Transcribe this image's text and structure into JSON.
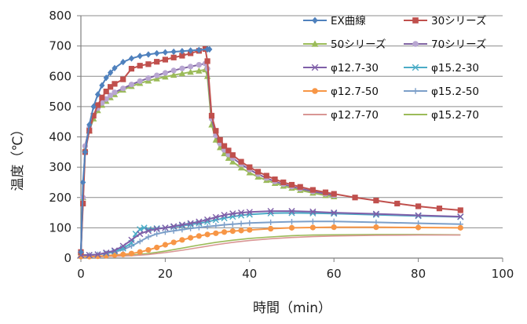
{
  "chart_data": {
    "type": "line",
    "xlabel": "時間（min）",
    "ylabel": "温度（℃）",
    "xlim": [
      0,
      100
    ],
    "ylim": [
      0,
      800
    ],
    "xticks": [
      "0",
      "20",
      "40",
      "60",
      "80",
      "100"
    ],
    "yticks": [
      "0",
      "100",
      "200",
      "300",
      "400",
      "500",
      "600",
      "700",
      "800"
    ],
    "grid": "horizontal",
    "legend": "right",
    "series": [
      {
        "name": "EX曲線",
        "color": "#4f81bd",
        "marker": "diamond",
        "x": [
          0,
          0.5,
          1,
          2,
          3,
          4,
          5,
          6,
          7,
          8,
          10,
          12,
          14,
          16,
          18,
          20,
          22,
          24,
          26,
          28,
          30,
          30.5
        ],
        "y": [
          20,
          250,
          350,
          440,
          500,
          540,
          570,
          595,
          612,
          627,
          647,
          659,
          667,
          672,
          676,
          679,
          681,
          683,
          685,
          687,
          689,
          689
        ]
      },
      {
        "name": "30シリーズ",
        "color": "#c0504d",
        "marker": "square",
        "x": [
          0,
          0.5,
          1,
          2,
          3,
          4,
          5,
          6,
          7,
          8,
          10,
          12,
          14,
          16,
          18,
          20,
          22,
          24,
          26,
          28,
          29.5,
          30,
          31,
          32,
          33,
          34,
          35,
          36,
          38,
          40,
          42,
          44,
          46,
          48,
          50,
          52,
          55,
          58,
          60,
          65,
          70,
          75,
          80,
          85,
          90
        ],
        "y": [
          20,
          180,
          350,
          420,
          470,
          505,
          530,
          550,
          565,
          575,
          590,
          625,
          635,
          640,
          648,
          655,
          662,
          668,
          676,
          684,
          690,
          650,
          470,
          420,
          390,
          370,
          355,
          340,
          318,
          300,
          285,
          272,
          260,
          250,
          242,
          235,
          225,
          217,
          212,
          200,
          190,
          180,
          171,
          164,
          158
        ]
      },
      {
        "name": "50シリーズ",
        "color": "#9bbb59",
        "marker": "triangle",
        "x": [
          0,
          0.5,
          1,
          2,
          3,
          4,
          5,
          6,
          7,
          8,
          10,
          12,
          14,
          16,
          18,
          20,
          22,
          24,
          26,
          28,
          29.5,
          30,
          31,
          32,
          33,
          34,
          35,
          36,
          38,
          40,
          42,
          44,
          46,
          48,
          50,
          52,
          55,
          58,
          60
        ],
        "y": [
          20,
          200,
          360,
          420,
          460,
          487,
          505,
          518,
          530,
          540,
          555,
          567,
          577,
          585,
          592,
          598,
          604,
          609,
          614,
          618,
          622,
          600,
          440,
          390,
          365,
          345,
          330,
          318,
          298,
          282,
          268,
          257,
          247,
          238,
          231,
          224,
          215,
          207,
          203
        ]
      },
      {
        "name": "70シリーズ",
        "color": "#8064a2",
        "marker": "circle",
        "light": "#b8a6d1",
        "x": [
          0,
          0.5,
          1,
          2,
          3,
          4,
          5,
          6,
          7,
          8,
          10,
          12,
          14,
          16,
          18,
          20,
          22,
          24,
          26,
          28,
          29.5,
          30,
          31,
          32,
          33,
          34,
          35,
          36,
          38,
          40,
          42,
          44,
          46,
          48,
          50,
          52,
          55,
          58,
          60
        ],
        "y": [
          20,
          200,
          370,
          430,
          470,
          495,
          512,
          525,
          537,
          547,
          560,
          573,
          584,
          594,
          603,
          611,
          619,
          626,
          632,
          638,
          642,
          625,
          460,
          405,
          378,
          357,
          342,
          330,
          310,
          292,
          277,
          264,
          253,
          244,
          236,
          229,
          220,
          212,
          207
        ]
      },
      {
        "name": "φ12.7-30",
        "color": "#7f5fa8",
        "marker": "x",
        "x": [
          0,
          2,
          4,
          6,
          8,
          10,
          12,
          14,
          16,
          18,
          20,
          22,
          24,
          26,
          28,
          30,
          32,
          34,
          36,
          38,
          40,
          45,
          50,
          55,
          60,
          70,
          80,
          90
        ],
        "y": [
          10,
          10,
          12,
          18,
          25,
          40,
          60,
          80,
          90,
          96,
          100,
          105,
          110,
          115,
          120,
          127,
          135,
          142,
          147,
          150,
          152,
          155,
          155,
          153,
          150,
          146,
          141,
          137
        ]
      },
      {
        "name": "φ15.2-30",
        "color": "#4bacc6",
        "marker": "x",
        "x": [
          0,
          2,
          4,
          6,
          8,
          10,
          12,
          13,
          14,
          15,
          16,
          18,
          20,
          22,
          24,
          26,
          28,
          30,
          32,
          34,
          36,
          38,
          40,
          45,
          50,
          55,
          60,
          70,
          80,
          90
        ],
        "y": [
          10,
          10,
          12,
          16,
          22,
          32,
          50,
          80,
          95,
          100,
          95,
          98,
          100,
          103,
          107,
          111,
          115,
          120,
          126,
          132,
          137,
          141,
          144,
          148,
          149,
          148,
          147,
          143,
          139,
          136
        ]
      },
      {
        "name": "φ12.7-50",
        "color": "#f79646",
        "marker": "circle",
        "x": [
          0,
          2,
          4,
          6,
          8,
          10,
          12,
          14,
          16,
          18,
          20,
          22,
          24,
          26,
          28,
          30,
          32,
          34,
          36,
          38,
          40,
          45,
          50,
          55,
          60,
          70,
          80,
          90
        ],
        "y": [
          5,
          5,
          6,
          8,
          10,
          12,
          15,
          20,
          27,
          35,
          44,
          52,
          60,
          67,
          73,
          78,
          82,
          86,
          89,
          91,
          93,
          97,
          100,
          101,
          102,
          102,
          101,
          100
        ]
      },
      {
        "name": "φ15.2-50",
        "color": "#7c9fc9",
        "marker": "plus",
        "x": [
          0,
          2,
          4,
          6,
          8,
          10,
          12,
          14,
          16,
          18,
          20,
          22,
          24,
          26,
          28,
          30,
          32,
          34,
          36,
          38,
          40,
          45,
          50,
          55,
          60,
          70,
          80,
          90
        ],
        "y": [
          10,
          10,
          12,
          15,
          20,
          28,
          40,
          55,
          70,
          80,
          86,
          90,
          94,
          98,
          101,
          104,
          107,
          110,
          112,
          114,
          116,
          118,
          120,
          121,
          121,
          118,
          115,
          112
        ]
      },
      {
        "name": "φ12.7-70",
        "color": "#d99694",
        "marker": "none",
        "x": [
          0,
          4,
          8,
          12,
          16,
          20,
          24,
          28,
          32,
          36,
          40,
          45,
          50,
          55,
          60,
          70,
          80,
          90
        ],
        "y": [
          5,
          5,
          6,
          8,
          12,
          18,
          26,
          35,
          44,
          52,
          58,
          64,
          68,
          71,
          73,
          75,
          76,
          76
        ]
      },
      {
        "name": "φ15.2-70",
        "color": "#9bbb59",
        "marker": "none",
        "light": "#b5cf85",
        "x": [
          0,
          4,
          8,
          12,
          16,
          20,
          24,
          28,
          32,
          36,
          40,
          45,
          50,
          55,
          60,
          70,
          80,
          90
        ],
        "y": [
          5,
          5,
          7,
          10,
          15,
          23,
          33,
          43,
          52,
          59,
          65,
          70,
          74,
          76,
          77,
          78,
          78,
          77
        ]
      }
    ]
  }
}
